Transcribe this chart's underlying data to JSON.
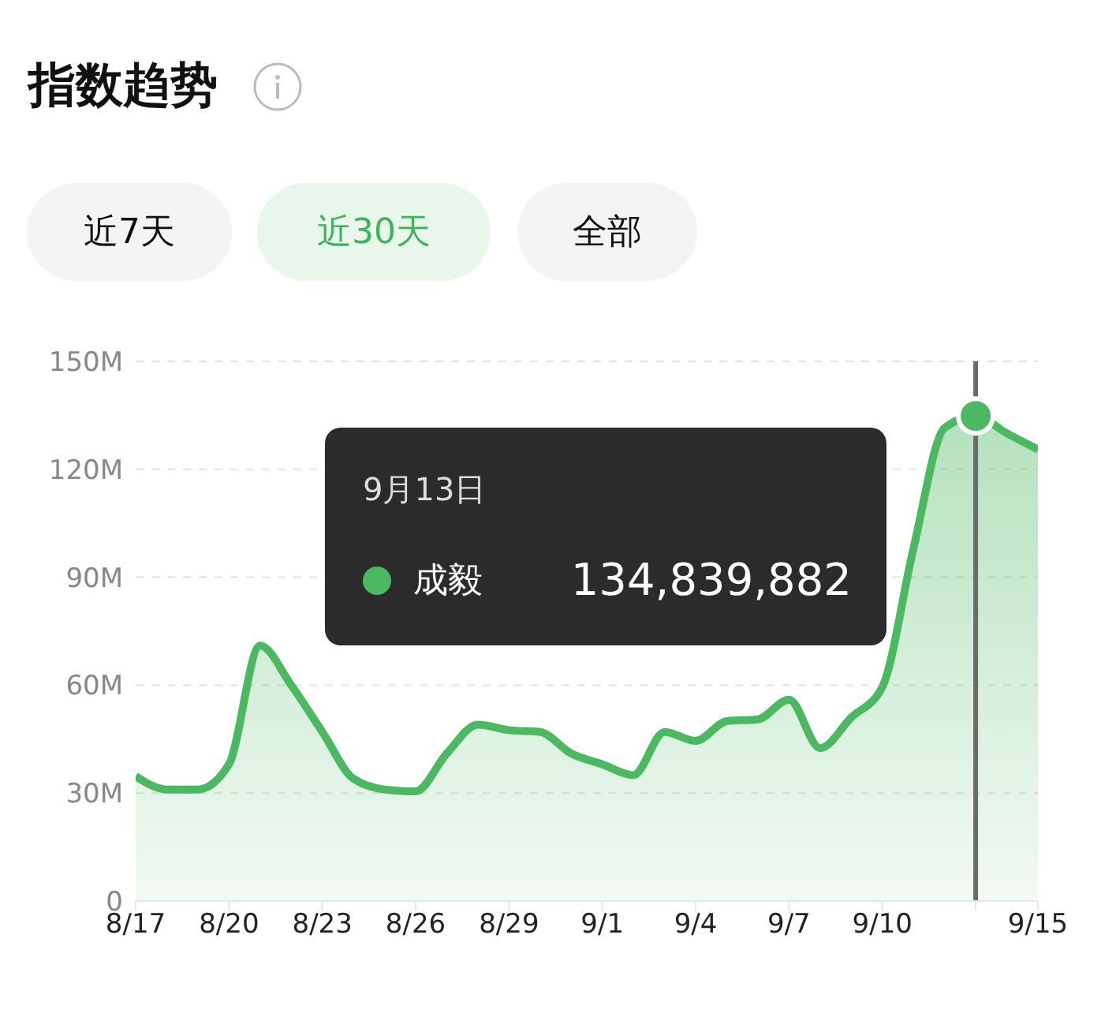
{
  "chart_data": {
    "type": "area",
    "title": "指数趋势",
    "annotations": [
      "近7天",
      "近30天",
      "全部",
      "9月13日",
      "134,839,882"
    ],
    "x": [
      "--08-17",
      "--08-18",
      "--08-19",
      "--08-20",
      "--08-21",
      "--08-22",
      "--08-23",
      "--08-24",
      "--08-25",
      "--08-26",
      "--08-27",
      "--08-28",
      "--08-29",
      "--08-30",
      "--08-31",
      "--09-01",
      "--09-02",
      "--09-03",
      "--09-04",
      "--09-05",
      "--09-06",
      "--09-07",
      "--09-08",
      "--09-09",
      "--09-10",
      "--09-11",
      "--09-12",
      "--09-13",
      "--09-14",
      "--09-15"
    ],
    "series": [
      {
        "name": "成毅",
        "color": "#4cb862",
        "values": [
          34.7,
          31,
          31,
          38,
          71,
          60,
          47,
          34,
          31,
          30.5,
          41,
          49,
          47.5,
          47,
          41,
          38,
          35,
          47,
          44.5,
          50,
          50.5,
          56,
          42.5,
          51,
          59.5,
          98,
          131.5,
          134.839882,
          130,
          125.5
        ]
      }
    ],
    "xlim": [
      "--08-17",
      "--09-15"
    ],
    "xticks": [
      {
        "value": "--08-17",
        "label": "8/17"
      },
      {
        "value": "--08-20",
        "label": "8/20"
      },
      {
        "value": "--08-23",
        "label": "8/23"
      },
      {
        "value": "--08-26",
        "label": "8/26"
      },
      {
        "value": "--08-29",
        "label": "8/29"
      },
      {
        "value": "--09-01",
        "label": "9/1"
      },
      {
        "value": "--09-04",
        "label": "9/4"
      },
      {
        "value": "--09-07",
        "label": "9/7"
      },
      {
        "value": "--09-10",
        "label": "9/10"
      },
      {
        "value": "--09-13",
        "label": null
      },
      {
        "value": "--09-15",
        "label": "9/15"
      }
    ],
    "ylim": [
      0,
      150
    ],
    "yticks": [
      0,
      {
        "value": 30,
        "label": "30M"
      },
      {
        "value": 60,
        "label": "60M"
      },
      {
        "value": 90,
        "label": "90M"
      },
      {
        "value": 120,
        "label": "120M"
      },
      {
        "value": 150,
        "label": "150M"
      }
    ],
    "ref_lines": [
      {
        "axis": "x",
        "value": "--09-13",
        "color": "#6b6b6b"
      }
    ],
    "grid": "y",
    "legend": "top",
    "marker": "none",
    "line_style": "solid"
  }
}
